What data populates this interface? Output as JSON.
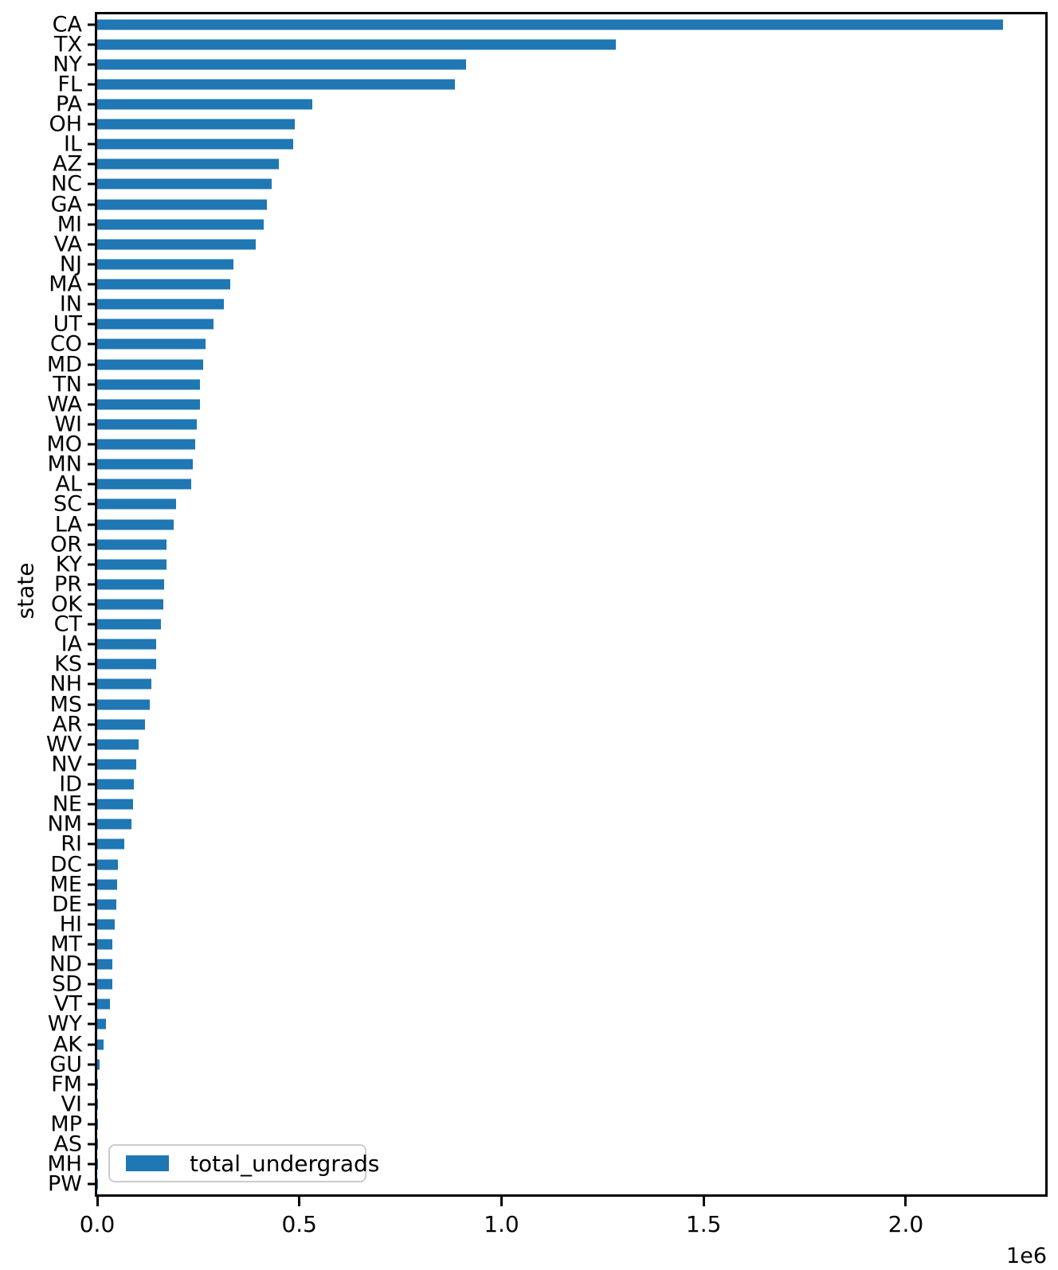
{
  "chart_data": {
    "type": "bar",
    "orientation": "horizontal",
    "title": "",
    "xlabel": "",
    "ylabel": "state",
    "legend": {
      "label": "total_undergrads",
      "position": "lower left"
    },
    "grid": false,
    "bar_color": "#1f77b4",
    "spine_color": "#000000",
    "legend_border_color": "#cccccc",
    "xlim": [
      0,
      2345000
    ],
    "x_ticks": [
      0,
      500000,
      1000000,
      1500000,
      2000000
    ],
    "x_tick_labels": [
      "0.0",
      "0.5",
      "1.0",
      "1.5",
      "2.0"
    ],
    "offset_label": "1e6",
    "categories": [
      "CA",
      "TX",
      "NY",
      "FL",
      "PA",
      "OH",
      "IL",
      "AZ",
      "NC",
      "GA",
      "MI",
      "VA",
      "NJ",
      "MA",
      "IN",
      "UT",
      "CO",
      "MD",
      "TN",
      "WA",
      "WI",
      "MO",
      "MN",
      "AL",
      "SC",
      "LA",
      "OR",
      "KY",
      "PR",
      "OK",
      "CT",
      "IA",
      "KS",
      "NH",
      "MS",
      "AR",
      "WV",
      "NV",
      "ID",
      "NE",
      "NM",
      "RI",
      "DC",
      "ME",
      "DE",
      "HI",
      "MT",
      "ND",
      "SD",
      "VT",
      "WY",
      "AK",
      "GU",
      "FM",
      "VI",
      "MP",
      "AS",
      "MH",
      "PW"
    ],
    "values": [
      2240000,
      1282000,
      912000,
      884000,
      532000,
      488000,
      485000,
      450000,
      431000,
      419000,
      412000,
      392000,
      337000,
      330000,
      313000,
      288000,
      268000,
      263000,
      254000,
      254000,
      246000,
      242000,
      236000,
      232000,
      195000,
      189000,
      171000,
      171000,
      166000,
      164000,
      158000,
      146000,
      145000,
      134000,
      130000,
      118000,
      102000,
      97000,
      91000,
      89000,
      85000,
      67000,
      51000,
      49000,
      47000,
      43000,
      37000,
      37000,
      37000,
      32000,
      21000,
      16000,
      5300,
      2000,
      2000,
      1200,
      1100,
      1000,
      500
    ],
    "series": [
      {
        "name": "total_undergrads",
        "values": [
          2240000,
          1282000,
          912000,
          884000,
          532000,
          488000,
          485000,
          450000,
          431000,
          419000,
          412000,
          392000,
          337000,
          330000,
          313000,
          288000,
          268000,
          263000,
          254000,
          254000,
          246000,
          242000,
          236000,
          232000,
          195000,
          189000,
          171000,
          171000,
          166000,
          164000,
          158000,
          146000,
          145000,
          134000,
          130000,
          118000,
          102000,
          97000,
          91000,
          89000,
          85000,
          67000,
          51000,
          49000,
          47000,
          43000,
          37000,
          37000,
          37000,
          32000,
          21000,
          16000,
          5300,
          2000,
          2000,
          1200,
          1100,
          1000,
          500
        ]
      }
    ]
  }
}
